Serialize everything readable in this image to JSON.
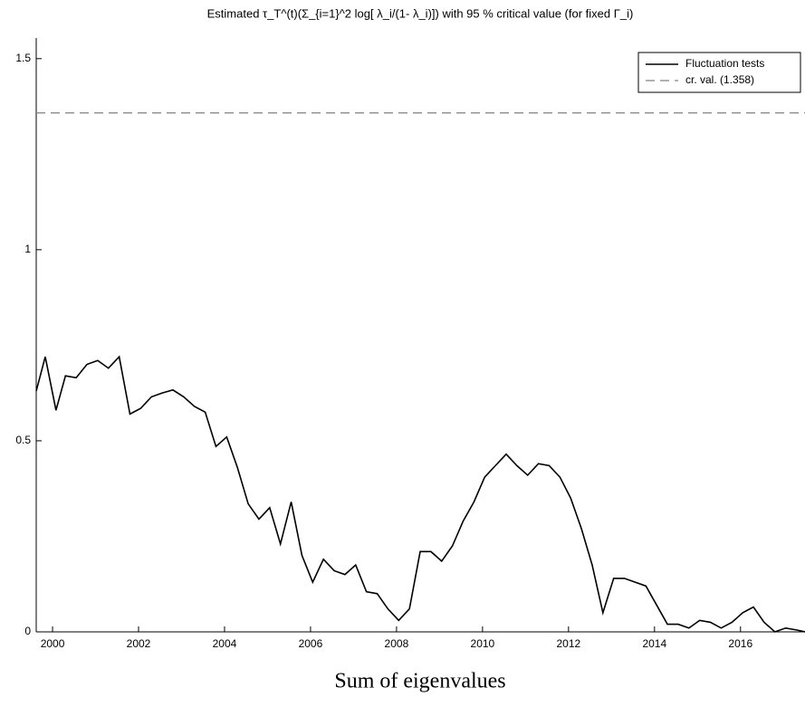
{
  "chart_data": {
    "type": "line",
    "title": "Estimated  τ_T^(t)(Σ_{i=1}^2 log[ λ_i/(1- λ_i)]) with 95 % critical value (for fixed  Γ_i)",
    "x_label": "Sum of eigenvalues",
    "x": [
      1999.62,
      1999.83,
      2000.08,
      2000.3,
      2000.55,
      2000.8,
      2001.05,
      2001.3,
      2001.55,
      2001.8,
      2002.05,
      2002.3,
      2002.55,
      2002.8,
      2003.05,
      2003.3,
      2003.55,
      2003.8,
      2004.05,
      2004.3,
      2004.55,
      2004.8,
      2005.05,
      2005.3,
      2005.55,
      2005.8,
      2006.05,
      2006.3,
      2006.55,
      2006.8,
      2007.05,
      2007.3,
      2007.55,
      2007.8,
      2008.05,
      2008.3,
      2008.55,
      2008.8,
      2009.05,
      2009.3,
      2009.55,
      2009.8,
      2010.05,
      2010.3,
      2010.55,
      2010.8,
      2011.05,
      2011.3,
      2011.55,
      2011.8,
      2012.05,
      2012.3,
      2012.55,
      2012.8,
      2013.05,
      2013.3,
      2013.55,
      2013.8,
      2014.05,
      2014.3,
      2014.55,
      2014.8,
      2015.05,
      2015.3,
      2015.55,
      2015.8,
      2016.05,
      2016.3,
      2016.55,
      2016.8,
      2017.05,
      2017.3,
      2017.5
    ],
    "series": [
      {
        "name": "Fluctuation tests",
        "color": "#000000",
        "values": [
          0.63,
          0.72,
          0.58,
          0.67,
          0.665,
          0.7,
          0.71,
          0.69,
          0.72,
          0.57,
          0.585,
          0.615,
          0.625,
          0.633,
          0.615,
          0.59,
          0.575,
          0.485,
          0.51,
          0.43,
          0.335,
          0.295,
          0.325,
          0.23,
          0.34,
          0.2,
          0.13,
          0.19,
          0.16,
          0.15,
          0.175,
          0.105,
          0.1,
          0.06,
          0.03,
          0.06,
          0.21,
          0.21,
          0.185,
          0.225,
          0.29,
          0.34,
          0.405,
          0.435,
          0.465,
          0.435,
          0.41,
          0.44,
          0.435,
          0.405,
          0.35,
          0.27,
          0.175,
          0.05,
          0.14,
          0.14,
          0.13,
          0.12,
          0.07,
          0.02,
          0.02,
          0.01,
          0.03,
          0.025,
          0.01,
          0.025,
          0.05,
          0.065,
          0.025,
          0.0,
          0.01,
          0.005,
          0.0
        ]
      }
    ],
    "critical_value": 1.358,
    "critical_label": "cr. val. (1.358)",
    "critical_color": "#808080",
    "xlim": [
      1999.62,
      2017.5
    ],
    "ylim": [
      0,
      1.554
    ],
    "xticks": [
      2000,
      2002,
      2004,
      2006,
      2008,
      2010,
      2012,
      2014,
      2016
    ],
    "yticks": [
      0,
      0.5,
      1,
      1.5
    ],
    "legend": "upper right"
  }
}
